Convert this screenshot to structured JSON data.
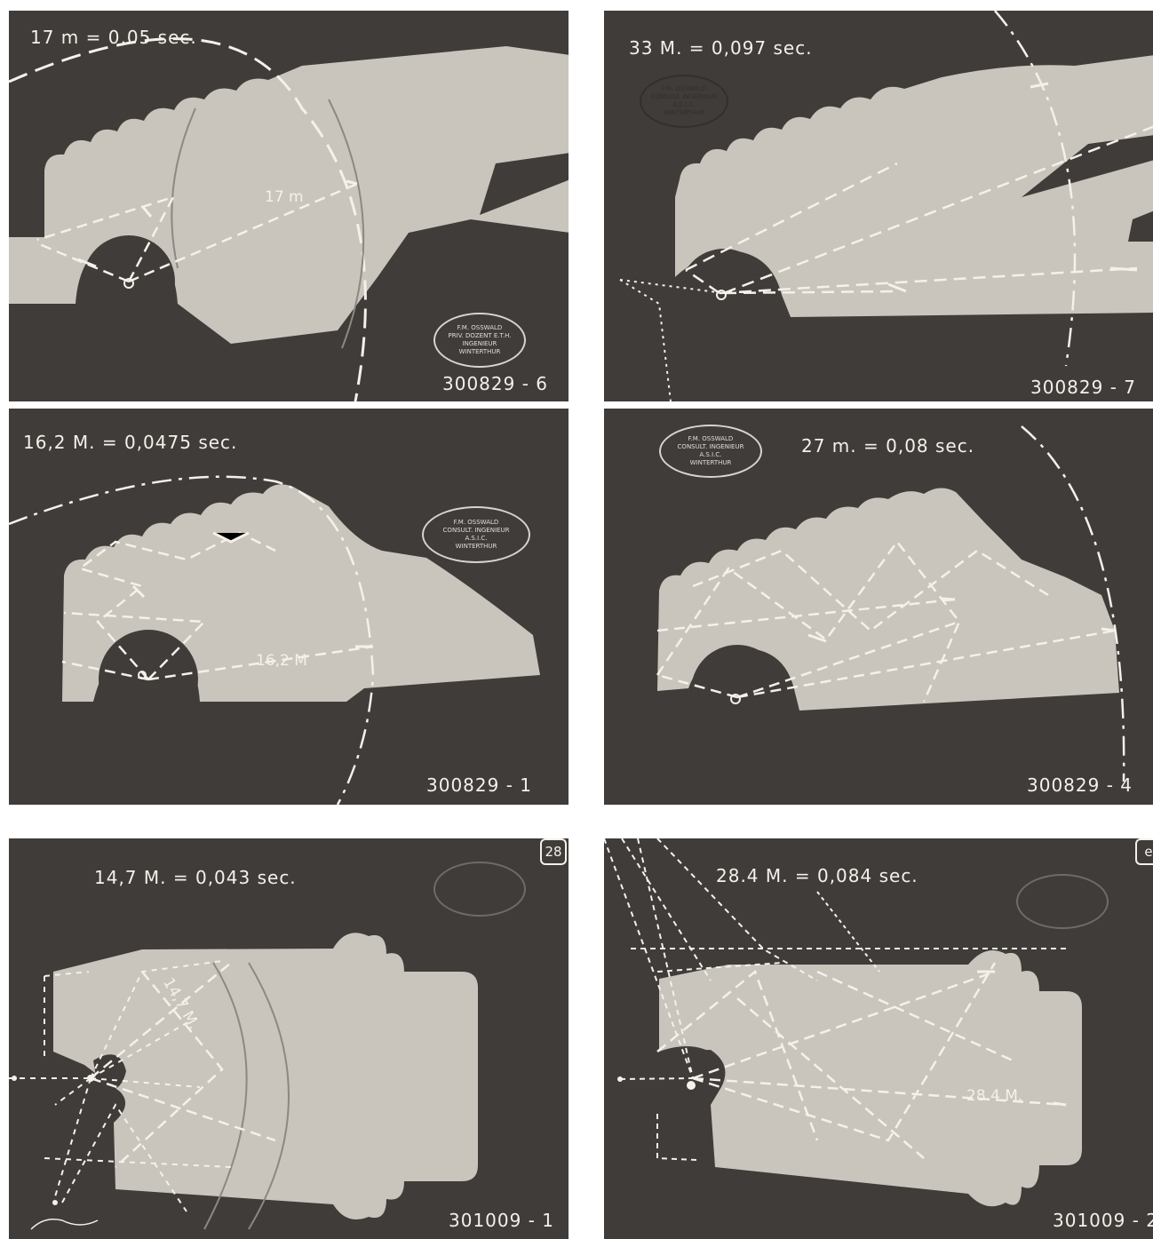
{
  "figure": {
    "background": "#ffffff",
    "plate_color": "#3f3c39",
    "model_color": "#c9c5bd",
    "ink_color": "#f4f1ea",
    "plates": [
      {
        "caption": "17 m = 0,05 sec.",
        "distance_label": "17 m",
        "plate_number": "300829 - 6",
        "stamp_lines": [
          "F.M. OSSWALD",
          "PRIV. DOZENT E.T.H.",
          "INGENIEUR",
          "WINTERTHUR"
        ]
      },
      {
        "caption": "33 M. = 0,097 sec.",
        "plate_number": "300829 - 7",
        "stamp_lines": [
          "F.M. OSSWALD",
          "CONSULT. INGENIEUR",
          "A.S.I.C.",
          "WINTERTHUR"
        ]
      },
      {
        "caption": "16,2 M. = 0,0475 sec.",
        "distance_label": "16,2 M",
        "plate_number": "300829 - 1",
        "stamp_lines": [
          "F.M. OSSWALD",
          "CONSULT. INGENIEUR",
          "A.S.I.C.",
          "WINTERTHUR"
        ]
      },
      {
        "caption": "27 m. = 0,08 sec.",
        "plate_number": "300829 - 4",
        "stamp_lines": [
          "F.M. OSSWALD",
          "CONSULT. INGENIEUR",
          "A.S.I.C.",
          "WINTERTHUR"
        ]
      },
      {
        "caption": "14,7 M. = 0,043 sec.",
        "distance_label": "14,7 M.",
        "plate_number": "301009 - 1",
        "corner_mark": "28"
      },
      {
        "caption": "28.4 M. = 0,084 sec.",
        "distance_label": "28.4 M.",
        "plate_number": "301009 - 2",
        "corner_mark": "e"
      }
    ]
  }
}
